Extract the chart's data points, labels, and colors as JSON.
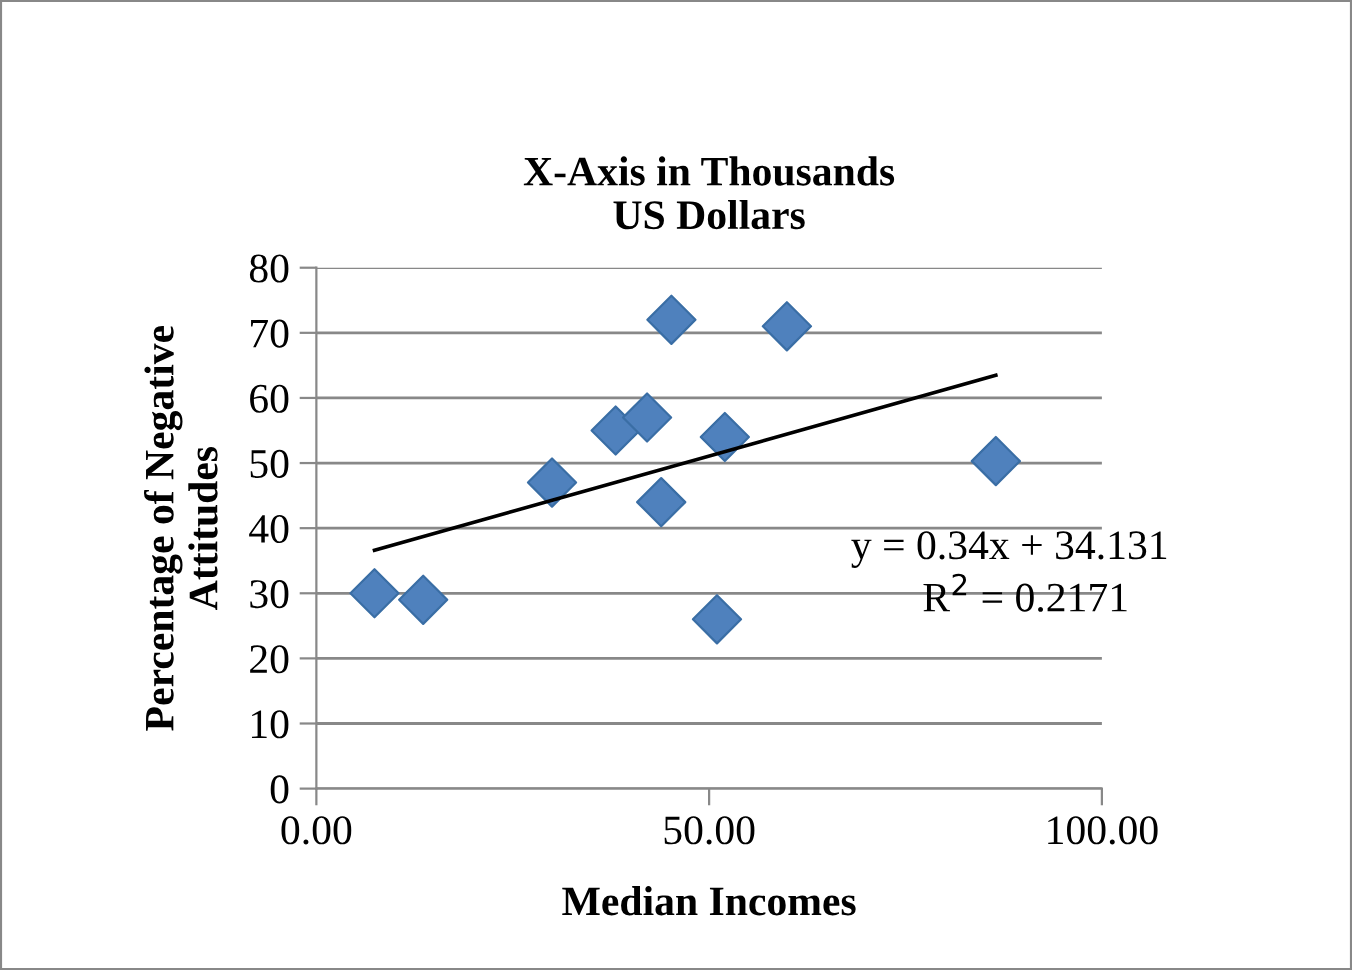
{
  "chart_data": {
    "type": "scatter",
    "title": "X-Axis in Thousands\nUS Dollars",
    "xlabel": "Median Incomes",
    "ylabel": "Percentage of Negative Attitudes",
    "series": [
      {
        "color": "#4f81bd",
        "marker": "diamond",
        "x": [
          7.4,
          13.6,
          30,
          38.1,
          42.1,
          43.9,
          45.2,
          51,
          52,
          59.9,
          86.5
        ],
        "values": [
          30,
          29,
          47,
          55,
          57,
          44,
          72,
          26,
          54,
          71,
          50.3
        ]
      },
      {
        "type": "line",
        "color": "#000000",
        "marker": "none",
        "line_style": "solid",
        "x": [
          7.4,
          86.5
        ],
        "values": [
          36.6,
          63.5
        ]
      }
    ],
    "annotations": [
      "y = 0.34x + 34.131",
      "R$^{2}$ = 0.2171"
    ],
    "xlim": [
      0,
      100
    ],
    "xticks": [
      {
        "value": 0,
        "label": "0.00"
      },
      {
        "value": 50,
        "label": "50.00"
      },
      {
        "value": 100,
        "label": "100.00"
      }
    ],
    "ylim": [
      0,
      80
    ],
    "yticks": [
      0,
      10,
      20,
      30,
      40,
      50,
      60,
      70,
      80
    ],
    "grid": "y",
    "legend": false
  }
}
